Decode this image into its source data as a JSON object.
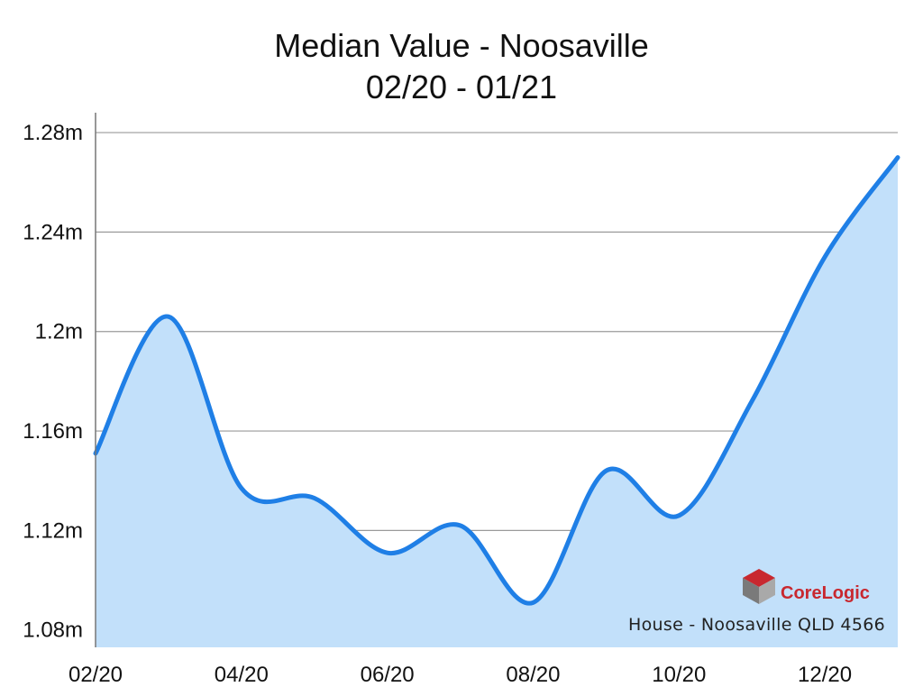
{
  "chart_data": {
    "type": "area",
    "title": "Median Value - Noosaville",
    "subtitle": "02/20 - 01/21",
    "xlabel": "",
    "ylabel": "",
    "x": [
      "02/20",
      "03/20",
      "04/20",
      "05/20",
      "06/20",
      "07/20",
      "08/20",
      "09/20",
      "10/20",
      "11/20",
      "12/20",
      "01/21"
    ],
    "x_tick_labels": [
      "02/20",
      "04/20",
      "06/20",
      "08/20",
      "10/20",
      "12/20"
    ],
    "values": [
      1151000,
      1206000,
      1137000,
      1133000,
      1111000,
      1122000,
      1091000,
      1144000,
      1126000,
      1172000,
      1230000,
      1270000
    ],
    "y_tick_values": [
      1080000,
      1120000,
      1160000,
      1200000,
      1240000,
      1280000
    ],
    "y_tick_labels": [
      "1.08m",
      "1.12m",
      "1.16m",
      "1.2m",
      "1.24m",
      "1.28m"
    ],
    "ylim": [
      1073000,
      1288000
    ],
    "grid": true,
    "legend": "none",
    "caption": "House - Noosaville QLD 4566",
    "brand": "CoreLogic",
    "colors": {
      "line": "#1f7fe6",
      "fill": "#c2e0fa",
      "grid": "#9a9a9a",
      "axis": "#777777",
      "brand_red": "#c8282f",
      "brand_grey": "#7a7a7a"
    }
  }
}
